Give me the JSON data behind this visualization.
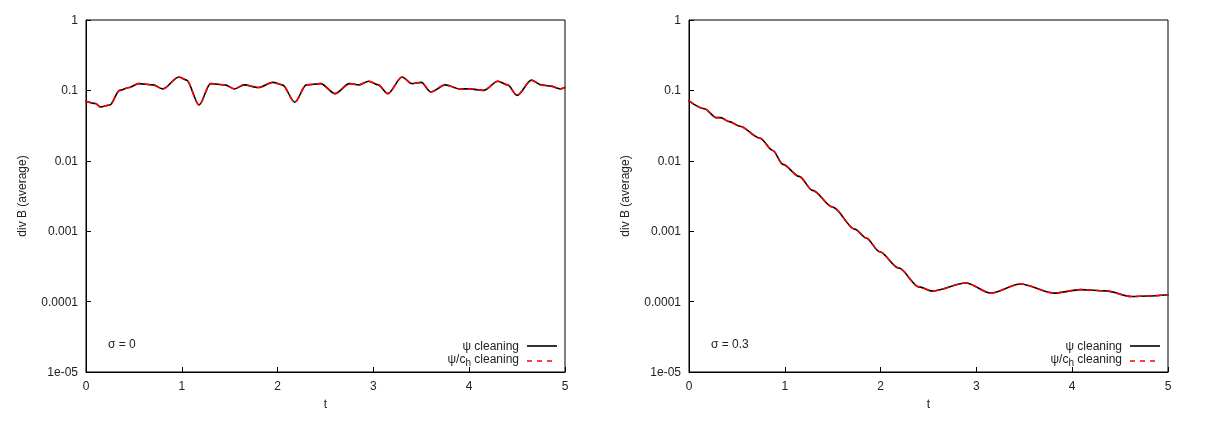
{
  "chart_data": [
    {
      "type": "line",
      "xlabel": "t",
      "ylabel": "div B (average)",
      "annotations": [
        "σ = 0"
      ],
      "log": "y",
      "legend": "bottom right",
      "grid": false,
      "xlim": [
        0,
        5
      ],
      "xticks": [
        0,
        1,
        2,
        3,
        4,
        5
      ],
      "ylim": [
        1e-05,
        1
      ],
      "yticks": [
        {
          "value": 1e-05,
          "label": "1e-05"
        },
        0.0001,
        0.001,
        0.01,
        0.1,
        1
      ],
      "x": [
        0,
        0.1,
        0.15,
        0.25,
        0.35,
        0.45,
        0.55,
        0.7,
        0.8,
        0.97,
        1.05,
        1.18,
        1.3,
        1.45,
        1.55,
        1.65,
        1.8,
        1.95,
        2.05,
        2.18,
        2.3,
        2.45,
        2.6,
        2.75,
        2.85,
        2.95,
        3.05,
        3.15,
        3.3,
        3.4,
        3.5,
        3.6,
        3.75,
        3.9,
        4.0,
        4.15,
        4.3,
        4.4,
        4.5,
        4.65,
        4.75,
        4.85,
        4.95,
        5
      ],
      "series": [
        {
          "name": "ψ cleaning",
          "color": "#000000",
          "line_style": "solid",
          "values": [
            0.07,
            0.065,
            0.058,
            0.062,
            0.1,
            0.11,
            0.125,
            0.12,
            0.105,
            0.155,
            0.14,
            0.062,
            0.125,
            0.12,
            0.105,
            0.12,
            0.11,
            0.13,
            0.12,
            0.068,
            0.12,
            0.125,
            0.09,
            0.125,
            0.12,
            0.135,
            0.12,
            0.09,
            0.155,
            0.125,
            0.13,
            0.095,
            0.12,
            0.105,
            0.105,
            0.1,
            0.135,
            0.12,
            0.085,
            0.14,
            0.12,
            0.115,
            0.105,
            0.11
          ]
        },
        {
          "name": "ψ/c$_{h}$ cleaning",
          "color": "#ff0000",
          "line_style": "dashed",
          "values": [
            0.07,
            0.065,
            0.058,
            0.062,
            0.1,
            0.11,
            0.125,
            0.12,
            0.105,
            0.155,
            0.14,
            0.062,
            0.125,
            0.12,
            0.105,
            0.12,
            0.11,
            0.13,
            0.12,
            0.068,
            0.12,
            0.125,
            0.09,
            0.125,
            0.12,
            0.135,
            0.12,
            0.09,
            0.155,
            0.125,
            0.13,
            0.095,
            0.12,
            0.105,
            0.105,
            0.1,
            0.135,
            0.12,
            0.085,
            0.14,
            0.12,
            0.115,
            0.105,
            0.11
          ]
        }
      ]
    },
    {
      "type": "line",
      "xlabel": "t",
      "ylabel": "div B (average)",
      "annotations": [
        "σ = 0.3"
      ],
      "log": "y",
      "legend": "bottom right",
      "grid": false,
      "xlim": [
        0,
        5
      ],
      "xticks": [
        0,
        1,
        2,
        3,
        4,
        5
      ],
      "ylim": [
        1e-05,
        1
      ],
      "yticks": [
        {
          "value": 1e-05,
          "label": "1e-05"
        },
        0.0001,
        0.001,
        0.01,
        0.1,
        1
      ],
      "x": [
        0,
        0.16,
        0.285,
        0.33,
        0.42,
        0.53,
        0.74,
        0.875,
        0.98,
        1.15,
        1.29,
        1.5,
        1.73,
        1.85,
        1.99,
        2.19,
        2.4,
        2.54,
        2.89,
        3.15,
        3.46,
        3.81,
        4.09,
        4.35,
        4.62,
        4.79,
        5
      ],
      "series": [
        {
          "name": "ψ cleaning",
          "color": "#000000",
          "line_style": "solid",
          "values": [
            0.071,
            0.055,
            0.041,
            0.041,
            0.036,
            0.031,
            0.021,
            0.014,
            0.0089,
            0.006,
            0.0038,
            0.0022,
            0.00107,
            0.0008,
            0.00051,
            0.0003,
            0.000162,
            0.000141,
            0.000184,
            0.000132,
            0.000178,
            0.000132,
            0.000148,
            0.000142,
            0.000118,
            0.00012,
            0.000125
          ]
        },
        {
          "name": "ψ/c$_{h}$ cleaning",
          "color": "#ff0000",
          "line_style": "dashed",
          "values": [
            0.071,
            0.055,
            0.041,
            0.041,
            0.036,
            0.031,
            0.021,
            0.014,
            0.0089,
            0.006,
            0.0038,
            0.0022,
            0.00107,
            0.0008,
            0.00051,
            0.0003,
            0.000162,
            0.000141,
            0.000184,
            0.000132,
            0.000178,
            0.000132,
            0.000148,
            0.000142,
            0.000118,
            0.00012,
            0.000125
          ]
        }
      ]
    }
  ]
}
